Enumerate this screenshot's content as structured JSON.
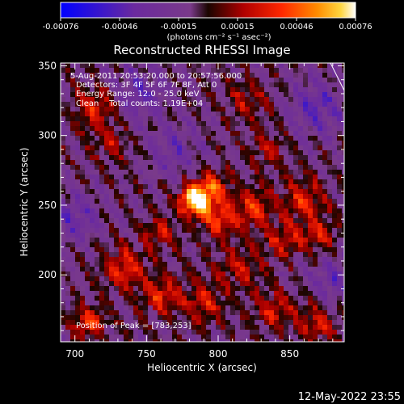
{
  "chart_data": {
    "type": "heatmap",
    "title": "Reconstructed RHESSI Image",
    "xlabel": "Heliocentric X (arcsec)",
    "ylabel": "Heliocentric Y (arcsec)",
    "xlim": [
      690,
      888
    ],
    "ylim": [
      152,
      352
    ],
    "x_ticks": [
      700,
      750,
      800,
      850
    ],
    "y_ticks": [
      200,
      250,
      300,
      350
    ],
    "colorbar": {
      "min": -0.00076,
      "max": 0.00076,
      "ticks": [
        "-0.00076",
        "-0.00046",
        "-0.00015",
        "0.00015",
        "0.00046",
        "0.00076"
      ],
      "unit_label": "(photons cm⁻² s⁻¹ asec⁻²)"
    },
    "annotations": [
      "5-Aug-2011 20:53:20.000 to 20:57:56.000",
      "Detectors: 3F 4F 5F 6F 7F 8F, Att 0",
      "Energy Range: 12.0 - 25.0 keV",
      "Clean    Total counts: 1.19E+04"
    ],
    "peak_label": "Position of Peak = [783,253]",
    "peak": {
      "x": 783,
      "y": 253
    },
    "sources": [
      {
        "x": 783,
        "y": 253,
        "amp": 1.0,
        "s": 7
      },
      {
        "x": 795,
        "y": 262,
        "amp": 0.55,
        "s": 9
      },
      {
        "x": 800,
        "y": 240,
        "amp": 0.5,
        "s": 9
      },
      {
        "x": 825,
        "y": 248,
        "amp": 0.45,
        "s": 10
      },
      {
        "x": 860,
        "y": 255,
        "amp": 0.42,
        "s": 10
      },
      {
        "x": 870,
        "y": 230,
        "amp": 0.4,
        "s": 9
      },
      {
        "x": 845,
        "y": 225,
        "amp": 0.38,
        "s": 9
      },
      {
        "x": 815,
        "y": 205,
        "amp": 0.32,
        "s": 11
      },
      {
        "x": 735,
        "y": 205,
        "amp": 0.45,
        "s": 11
      },
      {
        "x": 760,
        "y": 185,
        "amp": 0.45,
        "s": 9
      },
      {
        "x": 790,
        "y": 180,
        "amp": 0.4,
        "s": 10
      },
      {
        "x": 840,
        "y": 175,
        "amp": 0.38,
        "s": 10
      },
      {
        "x": 870,
        "y": 165,
        "amp": 0.4,
        "s": 9
      },
      {
        "x": 715,
        "y": 320,
        "amp": 0.45,
        "s": 10
      },
      {
        "x": 725,
        "y": 295,
        "amp": 0.28,
        "s": 9
      },
      {
        "x": 710,
        "y": 165,
        "amp": 0.5,
        "s": 8
      },
      {
        "x": 820,
        "y": 325,
        "amp": 0.28,
        "s": 10
      },
      {
        "x": 835,
        "y": 290,
        "amp": 0.3,
        "s": 9
      },
      {
        "x": 760,
        "y": 230,
        "amp": 0.35,
        "s": 8
      },
      {
        "x": 745,
        "y": 330,
        "amp": -0.3,
        "s": 14
      },
      {
        "x": 700,
        "y": 240,
        "amp": -0.3,
        "s": 13
      },
      {
        "x": 870,
        "y": 320,
        "amp": -0.35,
        "s": 14
      },
      {
        "x": 770,
        "y": 290,
        "amp": -0.25,
        "s": 13
      },
      {
        "x": 880,
        "y": 195,
        "amp": -0.3,
        "s": 11
      }
    ],
    "noise_amp": 0.18
  },
  "footer": {
    "timestamp": "12-May-2022 23:55"
  },
  "colors": {
    "background": "#000000",
    "foreground": "#ffffff",
    "colormap": [
      "#0000ff",
      "#6b2a9e",
      "#7a3a8a",
      "#1a0500",
      "#b00000",
      "#ff2800",
      "#ff8c00",
      "#ffd640",
      "#ffffff"
    ]
  }
}
